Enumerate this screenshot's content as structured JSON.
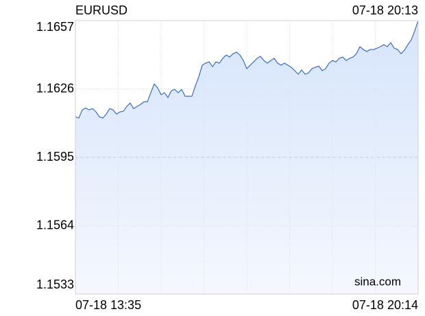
{
  "chart_data": {
    "type": "line",
    "title": "EURUSD",
    "timestamp": "07-18 20:13",
    "watermark": "sina.com",
    "categories": [
      "07-18 13:35",
      null,
      null,
      null,
      null,
      null,
      null,
      null,
      null,
      null,
      null,
      null,
      null,
      null,
      null,
      null,
      null,
      null,
      null,
      null,
      null,
      null,
      null,
      null,
      null,
      null,
      null,
      null,
      null,
      null,
      null,
      null,
      null,
      null,
      null,
      null,
      null,
      null,
      null,
      null,
      null,
      null,
      null,
      null,
      null,
      null,
      null,
      null,
      null,
      null,
      null,
      null,
      null,
      null,
      null,
      null,
      null,
      null,
      null,
      null,
      null,
      null,
      null,
      null,
      null,
      null,
      null,
      null,
      null,
      null,
      null,
      null,
      null,
      null,
      null,
      null,
      null,
      null,
      null,
      null,
      null,
      null,
      null,
      null,
      null,
      null,
      null,
      null,
      null,
      null,
      null,
      null,
      null,
      null,
      null,
      null,
      null,
      null,
      null,
      null,
      "07-18 20:14"
    ],
    "series": [
      {
        "name": "EURUSD",
        "color": "#3b6cc0",
        "values": [
          1.16134,
          1.16128,
          1.16165,
          1.16174,
          1.16165,
          1.16171,
          1.16156,
          1.16134,
          1.16128,
          1.16146,
          1.16171,
          1.16165,
          1.16146,
          1.16156,
          1.16159,
          1.16181,
          1.16196,
          1.16171,
          1.16181,
          1.1619,
          1.16202,
          1.16202,
          1.16243,
          1.16283,
          1.16265,
          1.16234,
          1.16243,
          1.16221,
          1.16252,
          1.16258,
          1.16243,
          1.16258,
          1.16227,
          1.16227,
          1.16227,
          1.16274,
          1.16315,
          1.16368,
          1.16377,
          1.16383,
          1.16361,
          1.16383,
          1.16377,
          1.16399,
          1.16414,
          1.16405,
          1.1642,
          1.16427,
          1.16414,
          1.16389,
          1.16352,
          1.16368,
          1.16383,
          1.16399,
          1.16408,
          1.16389,
          1.16377,
          1.16389,
          1.16399,
          1.16377,
          1.16368,
          1.16377,
          1.16368,
          1.16358,
          1.16343,
          1.16327,
          1.16346,
          1.16327,
          1.16333,
          1.16352,
          1.16358,
          1.16364,
          1.16343,
          1.16352,
          1.16377,
          1.16389,
          1.16383,
          1.16399,
          1.16405,
          1.16389,
          1.16399,
          1.16405,
          1.1642,
          1.16452,
          1.16439,
          1.1643,
          1.16439,
          1.16439,
          1.16445,
          1.16452,
          1.16461,
          1.16452,
          1.1647,
          1.16445,
          1.16439,
          1.1642,
          1.16436,
          1.16461,
          1.16483,
          1.16523,
          1.1657
        ]
      }
    ],
    "ylim": [
      1.1533,
      1.1657
    ],
    "yticks": [
      1.1533,
      1.1564,
      1.1595,
      1.1626,
      1.1657
    ],
    "ytick_colors": [
      "#e0140e",
      "#e0140e",
      "#000000",
      "#0a9a0a",
      "#0a9a0a"
    ],
    "area_color": "#d6e4fb",
    "grid": true
  }
}
